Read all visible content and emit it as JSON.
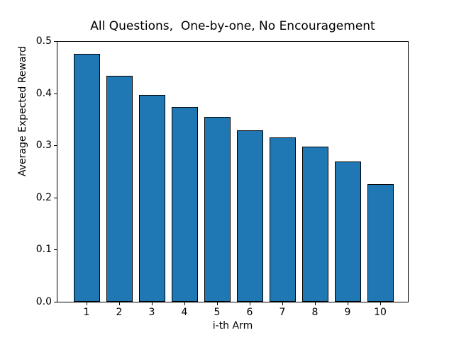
{
  "chart_data": {
    "type": "bar",
    "title": "All Questions,  One-by-one, No Encouragement",
    "xlabel": "i-th Arm",
    "ylabel": "Average Expected Reward",
    "categories": [
      "1",
      "2",
      "3",
      "4",
      "5",
      "6",
      "7",
      "8",
      "9",
      "10"
    ],
    "values": [
      0.477,
      0.434,
      0.398,
      0.374,
      0.355,
      0.33,
      0.316,
      0.299,
      0.27,
      0.226
    ],
    "ylim": [
      0.0,
      0.5
    ],
    "yticks": [
      0.0,
      0.1,
      0.2,
      0.3,
      0.4,
      0.5
    ],
    "ytick_labels": [
      "0.0",
      "0.1",
      "0.2",
      "0.3",
      "0.4",
      "0.5"
    ],
    "grid": false,
    "legend": null,
    "bar_color": "#1f77b4",
    "bar_edge_color": "#000000",
    "background_color": "#ffffff"
  }
}
